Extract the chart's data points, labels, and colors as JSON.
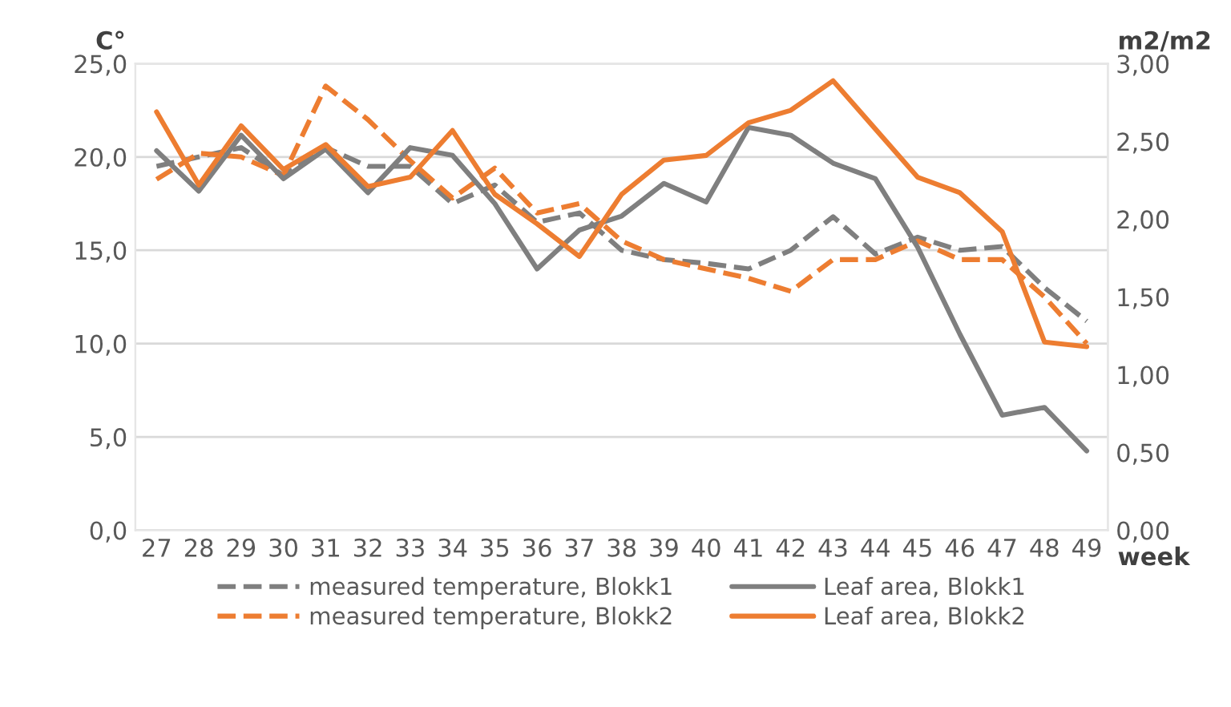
{
  "chart_data": {
    "type": "line",
    "ylabel": "C°",
    "y2label": "m2/m2",
    "xlabel": "week",
    "categories": [
      "27",
      "28",
      "29",
      "30",
      "31",
      "32",
      "33",
      "34",
      "35",
      "36",
      "37",
      "38",
      "39",
      "40",
      "41",
      "42",
      "43",
      "44",
      "45",
      "46",
      "47",
      "48",
      "49"
    ],
    "series": [
      {
        "name": "measured temperature, Blokk1",
        "color": "#7f7f7f",
        "line_style": "dashed",
        "values": [
          19.5,
          20,
          20.5,
          19,
          20.5,
          19.5,
          19.5,
          17.5,
          18.5,
          16.5,
          17,
          15,
          14.5,
          14.3,
          14,
          15,
          16.8,
          14.8,
          15.7,
          15,
          15.2,
          13,
          11.2
        ]
      },
      {
        "name": "measured temperature, Blokk2",
        "color": "#ed7d31",
        "line_style": "dashed",
        "values": [
          18.8,
          20.2,
          20,
          19,
          23.8,
          22,
          19.8,
          17.8,
          19.4,
          17,
          17.5,
          15.5,
          14.5,
          14,
          13.5,
          12.8,
          14.5,
          14.5,
          15.5,
          14.5,
          14.5,
          12.5,
          10
        ]
      },
      {
        "name": "Leaf area, Blokk1",
        "color": "#7f7f7f",
        "line_style": "solid",
        "axis": "y2",
        "values": [
          2.44,
          2.18,
          2.54,
          2.26,
          2.45,
          2.17,
          2.46,
          2.41,
          2.1,
          1.68,
          1.93,
          2.02,
          2.23,
          2.11,
          2.59,
          2.54,
          2.36,
          2.26,
          1.82,
          1.26,
          0.74,
          0.79,
          0.51
        ]
      },
      {
        "name": "Leaf area, Blokk2",
        "color": "#ed7d31",
        "line_style": "solid",
        "axis": "y2",
        "values": [
          2.69,
          2.22,
          2.6,
          2.32,
          2.48,
          2.21,
          2.27,
          2.57,
          2.16,
          1.97,
          1.76,
          2.16,
          2.38,
          2.41,
          2.62,
          2.7,
          2.89,
          2.58,
          2.27,
          2.17,
          1.92,
          1.21,
          1.18
        ]
      }
    ],
    "ylim": [
      0,
      25
    ],
    "yticks": [
      {
        "value": 0,
        "label": "0,0"
      },
      {
        "value": 5,
        "label": "5,0"
      },
      {
        "value": 10,
        "label": "10,0"
      },
      {
        "value": 15,
        "label": "15,0"
      },
      {
        "value": 20,
        "label": "20,0"
      },
      {
        "value": 25,
        "label": "25,0"
      }
    ],
    "y2lim": [
      0,
      3
    ],
    "y2ticks": [
      {
        "value": 0,
        "label": "0,00"
      },
      {
        "value": 0.5,
        "label": "0,50"
      },
      {
        "value": 1,
        "label": "1,00"
      },
      {
        "value": 1.5,
        "label": "1,50"
      },
      {
        "value": 2,
        "label": "2,00"
      },
      {
        "value": 2.5,
        "label": "2,50"
      },
      {
        "value": 3,
        "label": "3,00"
      }
    ],
    "grid": "y",
    "legend": "bottom"
  }
}
